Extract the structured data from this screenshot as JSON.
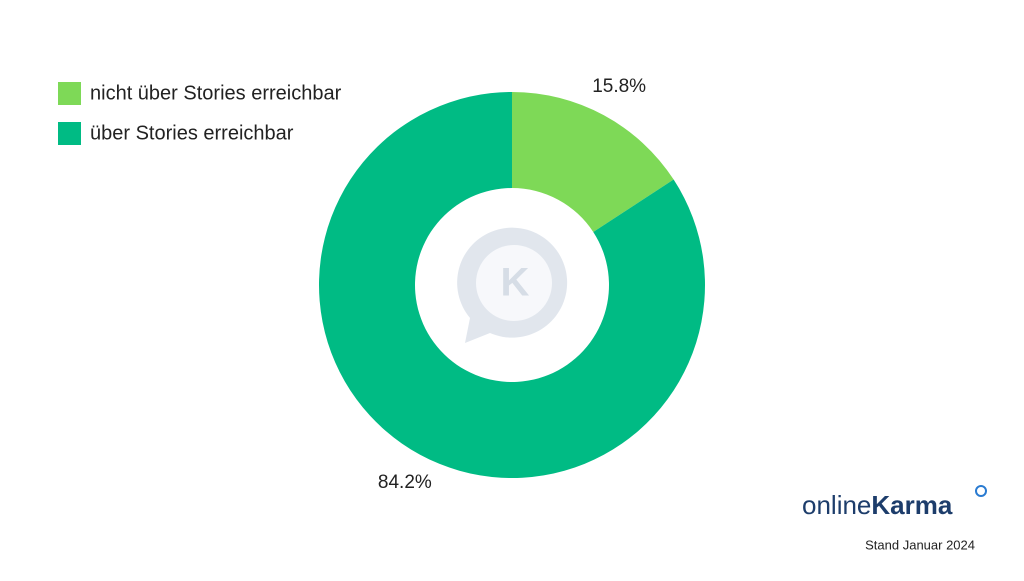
{
  "chart_data": {
    "type": "pie",
    "categories": [
      "nicht über Stories erreichbar",
      "über Stories erreichbar"
    ],
    "values": [
      15.8,
      84.2
    ],
    "value_labels": [
      "15.8%",
      "84.2%"
    ],
    "colors": [
      "#7ed957",
      "#00bb84"
    ],
    "donut": true,
    "legend": "top-left"
  },
  "watermark": "K",
  "brand_prefix": "online",
  "brand_name": "Karma",
  "footnote": "Stand Januar 2024"
}
